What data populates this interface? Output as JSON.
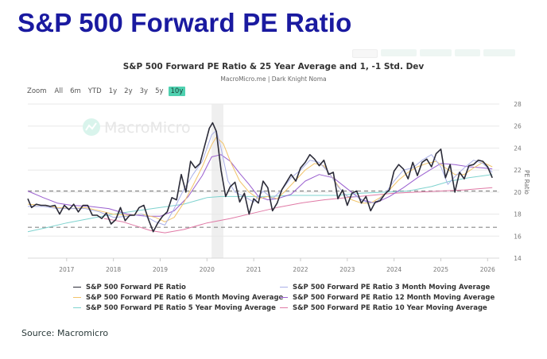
{
  "page_title": "S&P 500 Forward PE Ratio",
  "source": "Source: Macromicro",
  "range_selector": {
    "label": "Zoom",
    "buttons": [
      "All",
      "6m",
      "YTD",
      "1y",
      "2y",
      "3y",
      "5y",
      "10y"
    ],
    "active": "10y"
  },
  "watermark": "MacroMicro",
  "colors": {
    "title": "#1a1aa0",
    "pe": "#2b2b38",
    "ma3m": "#aab0e8",
    "ma6m": "#f2c46a",
    "ma12m": "#9a5fcf",
    "ma5y": "#7fd3cf",
    "ma10y": "#e07aa6",
    "active_button": "#4fd1b0"
  },
  "chart_data": {
    "type": "line",
    "title": "S&P 500 Forward PE Ratio & 25 Year Average and 1, -1 Std. Dev",
    "subtitle": "MacroMicro.me | Dark Knight Noma",
    "ylabel": "PE Ratio",
    "ylim": [
      14,
      28
    ],
    "yticks": [
      "14",
      "16",
      "18",
      "20",
      "22",
      "24",
      "26",
      "28"
    ],
    "xlim": [
      2016.17,
      2026.25
    ],
    "xticks": [
      "2017",
      "2018",
      "2019",
      "2020",
      "2021",
      "2022",
      "2023",
      "2024",
      "2025",
      "2026"
    ],
    "grid": true,
    "legend_position": "bottom",
    "reference_lines": [
      {
        "name": "25 Year Average + 1 Std. Dev",
        "value": 20.1,
        "style": "dashed"
      },
      {
        "name": "25 Year Average - 1 Std. Dev",
        "value": 16.8,
        "style": "dashed"
      }
    ],
    "shaded_band": {
      "from": 2020.1,
      "to": 2020.35
    },
    "series": [
      {
        "key": "pe",
        "name": "S&P 500 Forward PE Ratio",
        "x": [
          2016.17,
          2016.25,
          2016.35,
          2016.45,
          2016.55,
          2016.65,
          2016.75,
          2016.85,
          2016.95,
          2017.05,
          2017.15,
          2017.25,
          2017.35,
          2017.45,
          2017.55,
          2017.65,
          2017.75,
          2017.85,
          2017.95,
          2018.05,
          2018.15,
          2018.25,
          2018.35,
          2018.45,
          2018.55,
          2018.65,
          2018.75,
          2018.85,
          2018.95,
          2019.05,
          2019.15,
          2019.25,
          2019.35,
          2019.45,
          2019.55,
          2019.65,
          2019.75,
          2019.85,
          2019.95,
          2020.05,
          2020.12,
          2020.2,
          2020.3,
          2020.4,
          2020.5,
          2020.6,
          2020.7,
          2020.8,
          2020.9,
          2021.0,
          2021.1,
          2021.2,
          2021.3,
          2021.4,
          2021.5,
          2021.6,
          2021.7,
          2021.8,
          2021.9,
          2022.0,
          2022.1,
          2022.2,
          2022.3,
          2022.4,
          2022.5,
          2022.6,
          2022.7,
          2022.8,
          2022.9,
          2023.0,
          2023.1,
          2023.2,
          2023.3,
          2023.4,
          2023.5,
          2023.6,
          2023.7,
          2023.8,
          2023.9,
          2024.0,
          2024.1,
          2024.2,
          2024.3,
          2024.4,
          2024.5,
          2024.6,
          2024.7,
          2024.8,
          2024.9,
          2025.0,
          2025.1,
          2025.2,
          2025.3,
          2025.4,
          2025.5,
          2025.6,
          2025.7,
          2025.8,
          2025.9,
          2026.0,
          2026.1
        ],
        "values": [
          19.4,
          18.6,
          18.9,
          18.8,
          18.8,
          18.7,
          18.8,
          18.0,
          18.8,
          18.4,
          18.9,
          18.2,
          18.8,
          18.8,
          17.9,
          17.9,
          17.6,
          18.1,
          17.1,
          17.5,
          18.6,
          17.4,
          17.9,
          17.9,
          18.6,
          18.8,
          17.5,
          16.4,
          17.2,
          17.8,
          18.2,
          19.5,
          19.3,
          21.6,
          20.0,
          22.8,
          22.2,
          22.6,
          24.2,
          25.8,
          26.3,
          25.5,
          22.0,
          19.6,
          20.5,
          20.9,
          19.1,
          19.9,
          18.0,
          19.4,
          19.0,
          21.0,
          20.4,
          18.3,
          19.0,
          20.2,
          20.9,
          21.6,
          21.0,
          22.2,
          22.7,
          23.4,
          23.0,
          22.4,
          22.9,
          21.6,
          21.8,
          19.4,
          20.2,
          18.8,
          19.9,
          20.1,
          19.0,
          19.6,
          18.3,
          19.1,
          19.2,
          19.8,
          20.2,
          21.9,
          22.5,
          22.1,
          21.2,
          22.7,
          21.5,
          22.7,
          23.0,
          22.3,
          23.5,
          23.9,
          21.3,
          22.5,
          20.0,
          21.8,
          21.2,
          22.4,
          22.5,
          22.9,
          22.8,
          22.3,
          21.3
        ]
      },
      {
        "key": "ma3m",
        "name": "S&P 500 Forward PE Ratio 3 Month Moving Average",
        "x": [
          2016.17,
          2016.5,
          2016.8,
          2017.1,
          2017.4,
          2017.7,
          2018.0,
          2018.3,
          2018.6,
          2018.9,
          2019.1,
          2019.3,
          2019.5,
          2019.7,
          2019.9,
          2020.1,
          2020.2,
          2020.3,
          2020.45,
          2020.6,
          2020.8,
          2021.0,
          2021.2,
          2021.4,
          2021.6,
          2021.8,
          2022.0,
          2022.2,
          2022.4,
          2022.6,
          2022.8,
          2023.0,
          2023.2,
          2023.4,
          2023.6,
          2023.8,
          2024.0,
          2024.2,
          2024.4,
          2024.6,
          2024.8,
          2025.0,
          2025.15,
          2025.3,
          2025.5,
          2025.7,
          2025.9,
          2026.1
        ],
        "values": [
          18.7,
          18.7,
          18.5,
          18.5,
          18.5,
          18.2,
          17.7,
          17.8,
          18.0,
          17.3,
          17.0,
          18.5,
          20.2,
          21.6,
          22.8,
          25.2,
          25.6,
          24.0,
          21.0,
          20.0,
          19.6,
          19.1,
          20.1,
          19.4,
          20.2,
          21.3,
          22.0,
          22.9,
          22.7,
          21.8,
          20.5,
          19.6,
          19.6,
          19.1,
          19.0,
          19.8,
          21.0,
          22.0,
          22.2,
          22.9,
          23.4,
          22.3,
          20.7,
          21.4,
          22.2,
          22.9,
          22.6,
          21.8
        ]
      },
      {
        "key": "ma6m",
        "name": "S&P 500 Forward PE Ratio 6 Month Moving Average",
        "x": [
          2016.17,
          2016.5,
          2016.8,
          2017.1,
          2017.4,
          2017.7,
          2018.0,
          2018.3,
          2018.6,
          2018.9,
          2019.1,
          2019.3,
          2019.5,
          2019.7,
          2019.9,
          2020.1,
          2020.2,
          2020.35,
          2020.5,
          2020.7,
          2020.9,
          2021.1,
          2021.3,
          2021.5,
          2021.7,
          2021.9,
          2022.1,
          2022.3,
          2022.5,
          2022.7,
          2022.9,
          2023.1,
          2023.3,
          2023.5,
          2023.7,
          2023.9,
          2024.1,
          2024.3,
          2024.5,
          2024.7,
          2024.9,
          2025.1,
          2025.3,
          2025.5,
          2025.7,
          2025.9,
          2026.1
        ],
        "values": [
          18.9,
          18.8,
          18.6,
          18.5,
          18.6,
          18.3,
          18.0,
          17.9,
          18.0,
          17.7,
          17.3,
          17.7,
          19.0,
          20.6,
          22.3,
          24.3,
          25.0,
          24.4,
          22.8,
          21.0,
          20.0,
          19.4,
          19.6,
          19.4,
          20.2,
          21.1,
          22.0,
          22.6,
          22.4,
          21.2,
          20.0,
          19.3,
          19.0,
          19.0,
          19.5,
          20.2,
          21.1,
          21.8,
          22.3,
          22.6,
          22.8,
          22.2,
          21.6,
          21.6,
          22.2,
          22.7,
          22.3
        ]
      },
      {
        "key": "ma12m",
        "name": "S&P 500 Forward PE Ratio 12 Month Moving Average",
        "x": [
          2016.17,
          2016.5,
          2016.8,
          2017.1,
          2017.5,
          2017.9,
          2018.3,
          2018.7,
          2019.0,
          2019.3,
          2019.6,
          2019.9,
          2020.1,
          2020.3,
          2020.5,
          2020.7,
          2020.9,
          2021.1,
          2021.3,
          2021.5,
          2021.8,
          2022.1,
          2022.4,
          2022.7,
          2023.0,
          2023.3,
          2023.6,
          2023.9,
          2024.2,
          2024.5,
          2024.8,
          2025.0,
          2025.3,
          2025.6,
          2025.9,
          2026.1
        ],
        "values": [
          20.1,
          19.5,
          19.0,
          18.8,
          18.7,
          18.5,
          18.0,
          17.8,
          17.8,
          18.3,
          19.6,
          21.5,
          23.2,
          23.4,
          22.8,
          21.7,
          20.7,
          19.6,
          19.3,
          19.4,
          19.8,
          21.0,
          21.6,
          21.3,
          20.3,
          19.3,
          19.0,
          19.6,
          20.4,
          21.3,
          22.1,
          22.6,
          22.5,
          22.3,
          22.2,
          22.1
        ]
      },
      {
        "key": "ma5y",
        "name": "S&P 500 Forward PE Ratio 5 Year Moving Average",
        "x": [
          2016.17,
          2016.6,
          2017.0,
          2017.5,
          2018.0,
          2018.5,
          2019.0,
          2019.5,
          2020.0,
          2020.3,
          2020.8,
          2021.3,
          2021.8,
          2022.3,
          2022.8,
          2023.3,
          2023.8,
          2024.3,
          2024.8,
          2025.2,
          2025.6,
          2026.1
        ],
        "values": [
          16.4,
          16.8,
          17.2,
          17.6,
          18.0,
          18.3,
          18.6,
          18.9,
          19.5,
          19.6,
          19.6,
          19.6,
          19.7,
          19.7,
          19.7,
          19.9,
          20.0,
          20.1,
          20.5,
          21.0,
          21.3,
          21.6
        ]
      },
      {
        "key": "ma10y",
        "name": "S&P 500 Forward PE Ratio 10 Year Moving Average",
        "x": [
          2017.8,
          2018.2,
          2018.5,
          2018.8,
          2019.1,
          2019.5,
          2020.0,
          2020.5,
          2021.0,
          2021.5,
          2022.0,
          2022.5,
          2023.0,
          2023.5,
          2024.0,
          2024.5,
          2025.0,
          2025.5,
          2026.1
        ],
        "values": [
          17.6,
          17.3,
          16.9,
          16.5,
          16.3,
          16.6,
          17.2,
          17.6,
          18.1,
          18.6,
          19.0,
          19.3,
          19.5,
          19.7,
          19.9,
          20.0,
          20.1,
          20.2,
          20.4
        ]
      }
    ]
  }
}
